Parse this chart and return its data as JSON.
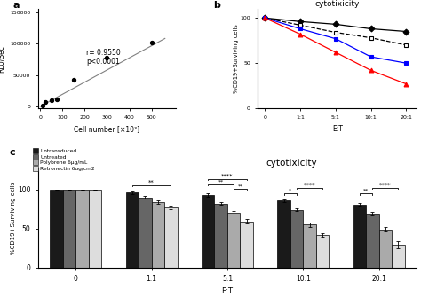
{
  "panel_a": {
    "scatter_x": [
      10,
      25,
      50,
      75,
      150,
      300,
      500
    ],
    "scatter_y": [
      2000,
      7000,
      10000,
      12000,
      43000,
      77000,
      102000
    ],
    "line_x": [
      0,
      560
    ],
    "line_y": [
      0,
      108000
    ],
    "annotation": "r= 0.9550\np<0.0001",
    "xlabel": "Cell number [×10³]",
    "ylabel": "RLU/Sec",
    "xticks": [
      0,
      100,
      200,
      300,
      400,
      500
    ],
    "xticklabels": [
      "0",
      "100",
      "200",
      "300",
      "400",
      "500"
    ],
    "yticks": [
      0,
      50000,
      100000,
      150000
    ],
    "yticklabels": [
      "0",
      "50000",
      "100000",
      "150000"
    ],
    "xlim": [
      -10,
      610
    ],
    "ylim": [
      -3000,
      155000
    ],
    "label": "a"
  },
  "panel_b": {
    "et_labels": [
      "0",
      "1:1",
      "5:1",
      "10:1",
      "20:1"
    ],
    "et_x": [
      0,
      1,
      2,
      3,
      4
    ],
    "lines": [
      {
        "name": "Untransduced",
        "y": [
          100,
          96,
          93,
          88,
          85
        ],
        "color": "black",
        "marker": "D",
        "linestyle": "-",
        "filled": true
      },
      {
        "name": "Untreated",
        "y": [
          100,
          92,
          84,
          78,
          70
        ],
        "color": "black",
        "marker": "s",
        "linestyle": "--",
        "filled": false
      },
      {
        "name": "Polybrene 6µg/mL",
        "y": [
          100,
          88,
          77,
          57,
          50
        ],
        "color": "blue",
        "marker": "s",
        "linestyle": "-",
        "filled": true
      },
      {
        "name": "Retronectin 6ug/cm2",
        "y": [
          100,
          82,
          62,
          42,
          27
        ],
        "color": "red",
        "marker": "^",
        "linestyle": "-",
        "filled": true
      }
    ],
    "title": "cytotixicity",
    "ylabel": "%CD19+Surviving cells",
    "xlabel": "E:T",
    "yticks": [
      0,
      50,
      100
    ],
    "ylim": [
      0,
      110
    ],
    "xlim": [
      -0.2,
      4.3
    ],
    "label": "b"
  },
  "panel_c": {
    "et_labels": [
      "0",
      "1:1",
      "5:1",
      "10:1",
      "20:1"
    ],
    "groups": [
      "Untransduced",
      "Untreated",
      "Polybrene 6µg/mL",
      "Retronectin 6ug/cm2"
    ],
    "colors": [
      "#1a1a1a",
      "#666666",
      "#aaaaaa",
      "#dddddd"
    ],
    "bar_width": 0.17,
    "values": [
      [
        100,
        100,
        100,
        100
      ],
      [
        96,
        90,
        84,
        77
      ],
      [
        93,
        82,
        70,
        59
      ],
      [
        86,
        74,
        55,
        42
      ],
      [
        81,
        69,
        49,
        29
      ]
    ],
    "errors": [
      [
        0.3,
        0.3,
        0.3,
        0.3
      ],
      [
        1.5,
        1.8,
        2.0,
        2.0
      ],
      [
        1.8,
        2.0,
        2.5,
        3.0
      ],
      [
        1.8,
        2.0,
        3.0,
        2.5
      ],
      [
        2.0,
        2.5,
        2.5,
        4.5
      ]
    ],
    "title": "cytotixicity",
    "ylabel": "%CD19+Surviving cells",
    "xlabel": "E:T",
    "yticks": [
      0,
      50,
      100
    ],
    "ylim": [
      0,
      128
    ],
    "label": "c"
  },
  "background_color": "#ffffff"
}
